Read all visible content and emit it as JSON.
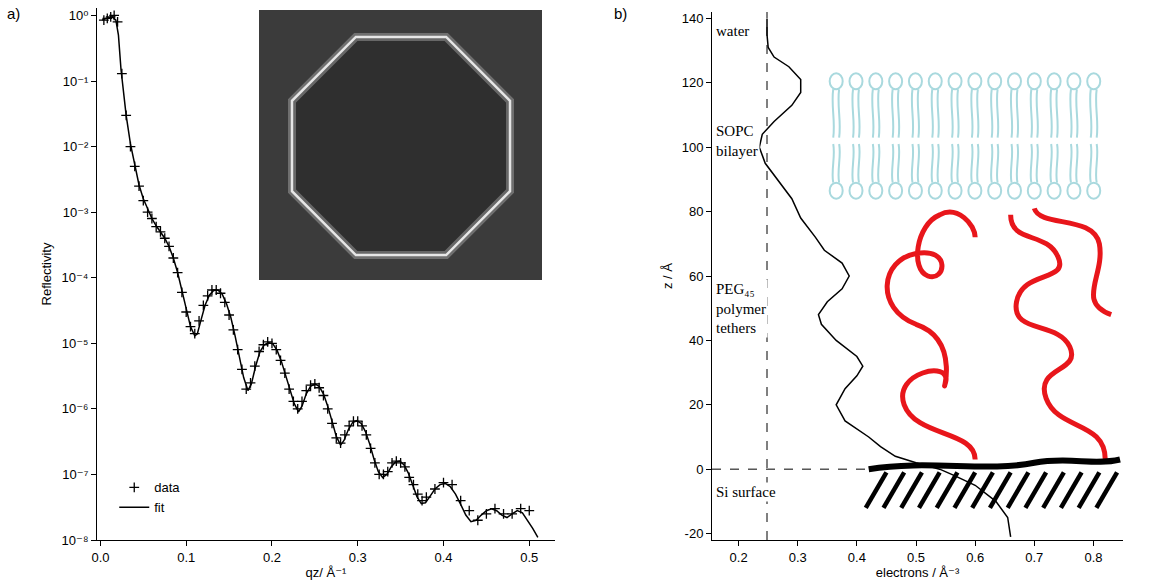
{
  "chart_data": [
    {
      "type": "scatter",
      "panel": "a)",
      "xlabel": "qz/ Å⁻¹",
      "ylabel": "Reflectivity",
      "log": "y",
      "grid": false,
      "legend": "lower left",
      "xlim": [
        -0.004,
        0.53
      ],
      "ylim": [
        1e-08,
        1.3
      ],
      "xticks": [
        {
          "value": 0,
          "label": "0.0"
        },
        0.1,
        0.2,
        0.3,
        0.4,
        0.5
      ],
      "yticks": [
        {
          "value": 1,
          "label": "10⁰"
        },
        {
          "value": 0.1,
          "label": "10⁻¹"
        },
        {
          "value": 0.01,
          "label": "10⁻²"
        },
        {
          "value": 0.001,
          "label": "10⁻³"
        },
        {
          "value": 0.0001,
          "label": "10⁻⁴"
        },
        {
          "value": 1e-05,
          "label": "10⁻⁵"
        },
        {
          "value": 1e-06,
          "label": "10⁻⁶"
        },
        {
          "value": 1e-07,
          "label": "10⁻⁷"
        },
        {
          "value": 1e-08,
          "label": "10⁻⁸"
        }
      ],
      "series": [
        {
          "name": "data",
          "type": "scatter",
          "marker": "cross",
          "color": "#000000",
          "x": [
            0.004,
            0.008,
            0.012,
            0.016,
            0.02,
            0.025,
            0.03,
            0.035,
            0.04,
            0.045,
            0.05,
            0.055,
            0.06,
            0.065,
            0.07,
            0.075,
            0.08,
            0.085,
            0.09,
            0.095,
            0.1,
            0.105,
            0.11,
            0.115,
            0.12,
            0.125,
            0.13,
            0.135,
            0.14,
            0.145,
            0.15,
            0.155,
            0.16,
            0.165,
            0.17,
            0.175,
            0.18,
            0.185,
            0.19,
            0.195,
            0.2,
            0.205,
            0.21,
            0.215,
            0.22,
            0.225,
            0.23,
            0.235,
            0.24,
            0.245,
            0.25,
            0.255,
            0.26,
            0.265,
            0.27,
            0.275,
            0.28,
            0.285,
            0.29,
            0.295,
            0.3,
            0.305,
            0.31,
            0.315,
            0.32,
            0.325,
            0.33,
            0.335,
            0.34,
            0.345,
            0.35,
            0.355,
            0.36,
            0.365,
            0.37,
            0.375,
            0.38,
            0.39,
            0.4,
            0.41,
            0.42,
            0.43,
            0.44,
            0.45,
            0.46,
            0.47,
            0.48,
            0.49,
            0.5
          ],
          "values": [
            0.85,
            0.9,
            0.95,
            1.0,
            0.8,
            0.13,
            0.03,
            0.01,
            0.005,
            0.0025,
            0.0015,
            0.001,
            0.0008,
            0.0006,
            0.0005,
            0.0004,
            0.0003,
            0.0002,
            0.00012,
            6e-05,
            3e-05,
            1.8e-05,
            1.4e-05,
            2.2e-05,
            3.8e-05,
            5.3e-05,
            6.5e-05,
            6.5e-05,
            5.8e-05,
            4.2e-05,
            2.7e-05,
            1.6e-05,
            8e-06,
            4e-06,
            2e-06,
            2.5e-06,
            4.5e-06,
            7.5e-06,
            9.5e-06,
            1.05e-05,
            1e-05,
            8e-06,
            5.5e-06,
            3.5e-06,
            2e-06,
            1.3e-06,
            1e-06,
            1.3e-06,
            1.9e-06,
            2.3e-06,
            2.4e-06,
            2.1e-06,
            1.6e-06,
            1e-06,
            6e-07,
            3.6e-07,
            3e-07,
            4e-07,
            5.5e-07,
            6.5e-07,
            6.5e-07,
            5.5e-07,
            4e-07,
            2.5e-07,
            1.5e-07,
            1e-07,
            1e-07,
            1.1e-07,
            1.5e-07,
            1.6e-07,
            1.5e-07,
            1.3e-07,
            9e-08,
            7e-08,
            5e-08,
            4e-08,
            4.5e-08,
            6e-08,
            7.5e-08,
            7e-08,
            4e-08,
            2.8e-08,
            2e-08,
            2.5e-08,
            3e-08,
            2.5e-08,
            2.5e-08,
            3e-08,
            2.8e-08
          ]
        },
        {
          "name": "fit",
          "type": "line",
          "line_style": "solid",
          "color": "#000000",
          "x": [
            0.002,
            0.006,
            0.01,
            0.014,
            0.018,
            0.021,
            0.024,
            0.027,
            0.03,
            0.035,
            0.04,
            0.045,
            0.05,
            0.055,
            0.06,
            0.065,
            0.07,
            0.075,
            0.08,
            0.085,
            0.09,
            0.095,
            0.1,
            0.105,
            0.11,
            0.113,
            0.117,
            0.122,
            0.127,
            0.132,
            0.137,
            0.142,
            0.147,
            0.152,
            0.157,
            0.162,
            0.167,
            0.172,
            0.176,
            0.181,
            0.186,
            0.191,
            0.196,
            0.201,
            0.206,
            0.211,
            0.216,
            0.221,
            0.226,
            0.231,
            0.235,
            0.24,
            0.245,
            0.25,
            0.255,
            0.26,
            0.265,
            0.27,
            0.275,
            0.28,
            0.284,
            0.289,
            0.294,
            0.299,
            0.304,
            0.309,
            0.314,
            0.319,
            0.324,
            0.329,
            0.334,
            0.339,
            0.344,
            0.349,
            0.354,
            0.359,
            0.364,
            0.369,
            0.374,
            0.379,
            0.385,
            0.39,
            0.396,
            0.402,
            0.408,
            0.414,
            0.42,
            0.426,
            0.432,
            0.438,
            0.444,
            0.45,
            0.456,
            0.462,
            0.468,
            0.474,
            0.48,
            0.486,
            0.492,
            0.498,
            0.504,
            0.51
          ],
          "values": [
            0.85,
            0.9,
            0.92,
            0.95,
            0.85,
            0.5,
            0.15,
            0.06,
            0.03,
            0.011,
            0.005,
            0.0026,
            0.0016,
            0.0011,
            0.0008,
            0.00062,
            0.0005,
            0.0004,
            0.0003,
            0.0002,
            0.00012,
            6.5e-05,
            3.3e-05,
            1.8e-05,
            1.3e-05,
            1.4e-05,
            2.2e-05,
            3.8e-05,
            5.4e-05,
            6.4e-05,
            6.5e-05,
            5.6e-05,
            4e-05,
            2.5e-05,
            1.3e-05,
            6.5e-06,
            3e-06,
            1.9e-06,
            2.4e-06,
            4.5e-06,
            7.4e-06,
            9.5e-06,
            1.03e-05,
            9.8e-06,
            7.8e-06,
            5.3e-06,
            3.2e-06,
            1.9e-06,
            1.2e-06,
            9e-07,
            1.1e-06,
            1.7e-06,
            2.2e-06,
            2.4e-06,
            2.2e-06,
            1.7e-06,
            1.1e-06,
            6.5e-07,
            3.8e-07,
            2.8e-07,
            3.3e-07,
            4.8e-07,
            6.2e-07,
            6.6e-07,
            6e-07,
            4.5e-07,
            2.9e-07,
            1.7e-07,
            1.1e-07,
            9e-08,
            1e-07,
            1.3e-07,
            1.55e-07,
            1.6e-07,
            1.4e-07,
            1.05e-07,
            7e-08,
            4.6e-08,
            3.6e-08,
            3.7e-08,
            4.8e-08,
            6e-08,
            7e-08,
            7.3e-08,
            6.5e-08,
            5e-08,
            3.5e-08,
            2.4e-08,
            1.9e-08,
            2e-08,
            2.4e-08,
            2.8e-08,
            3e-08,
            2.8e-08,
            2.4e-08,
            2.2e-08,
            2.5e-08,
            2.8e-08,
            2.6e-08,
            2e-08,
            1.5e-08,
            1.1e-08
          ]
        }
      ]
    },
    {
      "type": "line",
      "panel": "b)",
      "xlabel": "electrons / Å⁻³",
      "ylabel": "z / Å",
      "grid": false,
      "xlim": [
        0.155,
        0.85
      ],
      "ylim": [
        -22,
        142
      ],
      "xticks": [
        0.2,
        0.3,
        0.4,
        0.5,
        0.6,
        0.7,
        0.8
      ],
      "yticks": [
        -20,
        0,
        20,
        40,
        60,
        80,
        100,
        120,
        140
      ],
      "annotations": [
        "water",
        "SOPC\nbilayer",
        "PEG₄₅\npolymer\ntethers",
        "Si surface"
      ],
      "reference_lines": [
        {
          "axis": "x",
          "value": 0.248,
          "line_style": "dashed"
        },
        {
          "axis": "y",
          "value": 0,
          "line_style": "dashed"
        }
      ],
      "series": [
        {
          "type": "line",
          "line_style": "solid",
          "color": "#000000",
          "x": [
            0.66,
            0.655,
            0.635,
            0.6,
            0.565,
            0.54,
            0.5,
            0.465,
            0.44,
            0.42,
            0.38,
            0.365,
            0.38,
            0.4,
            0.41,
            0.4,
            0.365,
            0.34,
            0.335,
            0.35,
            0.375,
            0.387,
            0.375,
            0.345,
            0.33,
            0.305,
            0.29,
            0.265,
            0.245,
            0.235,
            0.24,
            0.26,
            0.29,
            0.305,
            0.305,
            0.285,
            0.26,
            0.25,
            0.248,
            0.248
          ],
          "values": [
            -21,
            -15,
            -10,
            -5,
            -2,
            0,
            2,
            4,
            7,
            10,
            15,
            20,
            25,
            29,
            32,
            35,
            40,
            45,
            48,
            52,
            56,
            60,
            64,
            68,
            72,
            78,
            84,
            90,
            95,
            100,
            104,
            108,
            113,
            117,
            121,
            125,
            128,
            131,
            135,
            140
          ]
        }
      ]
    }
  ]
}
